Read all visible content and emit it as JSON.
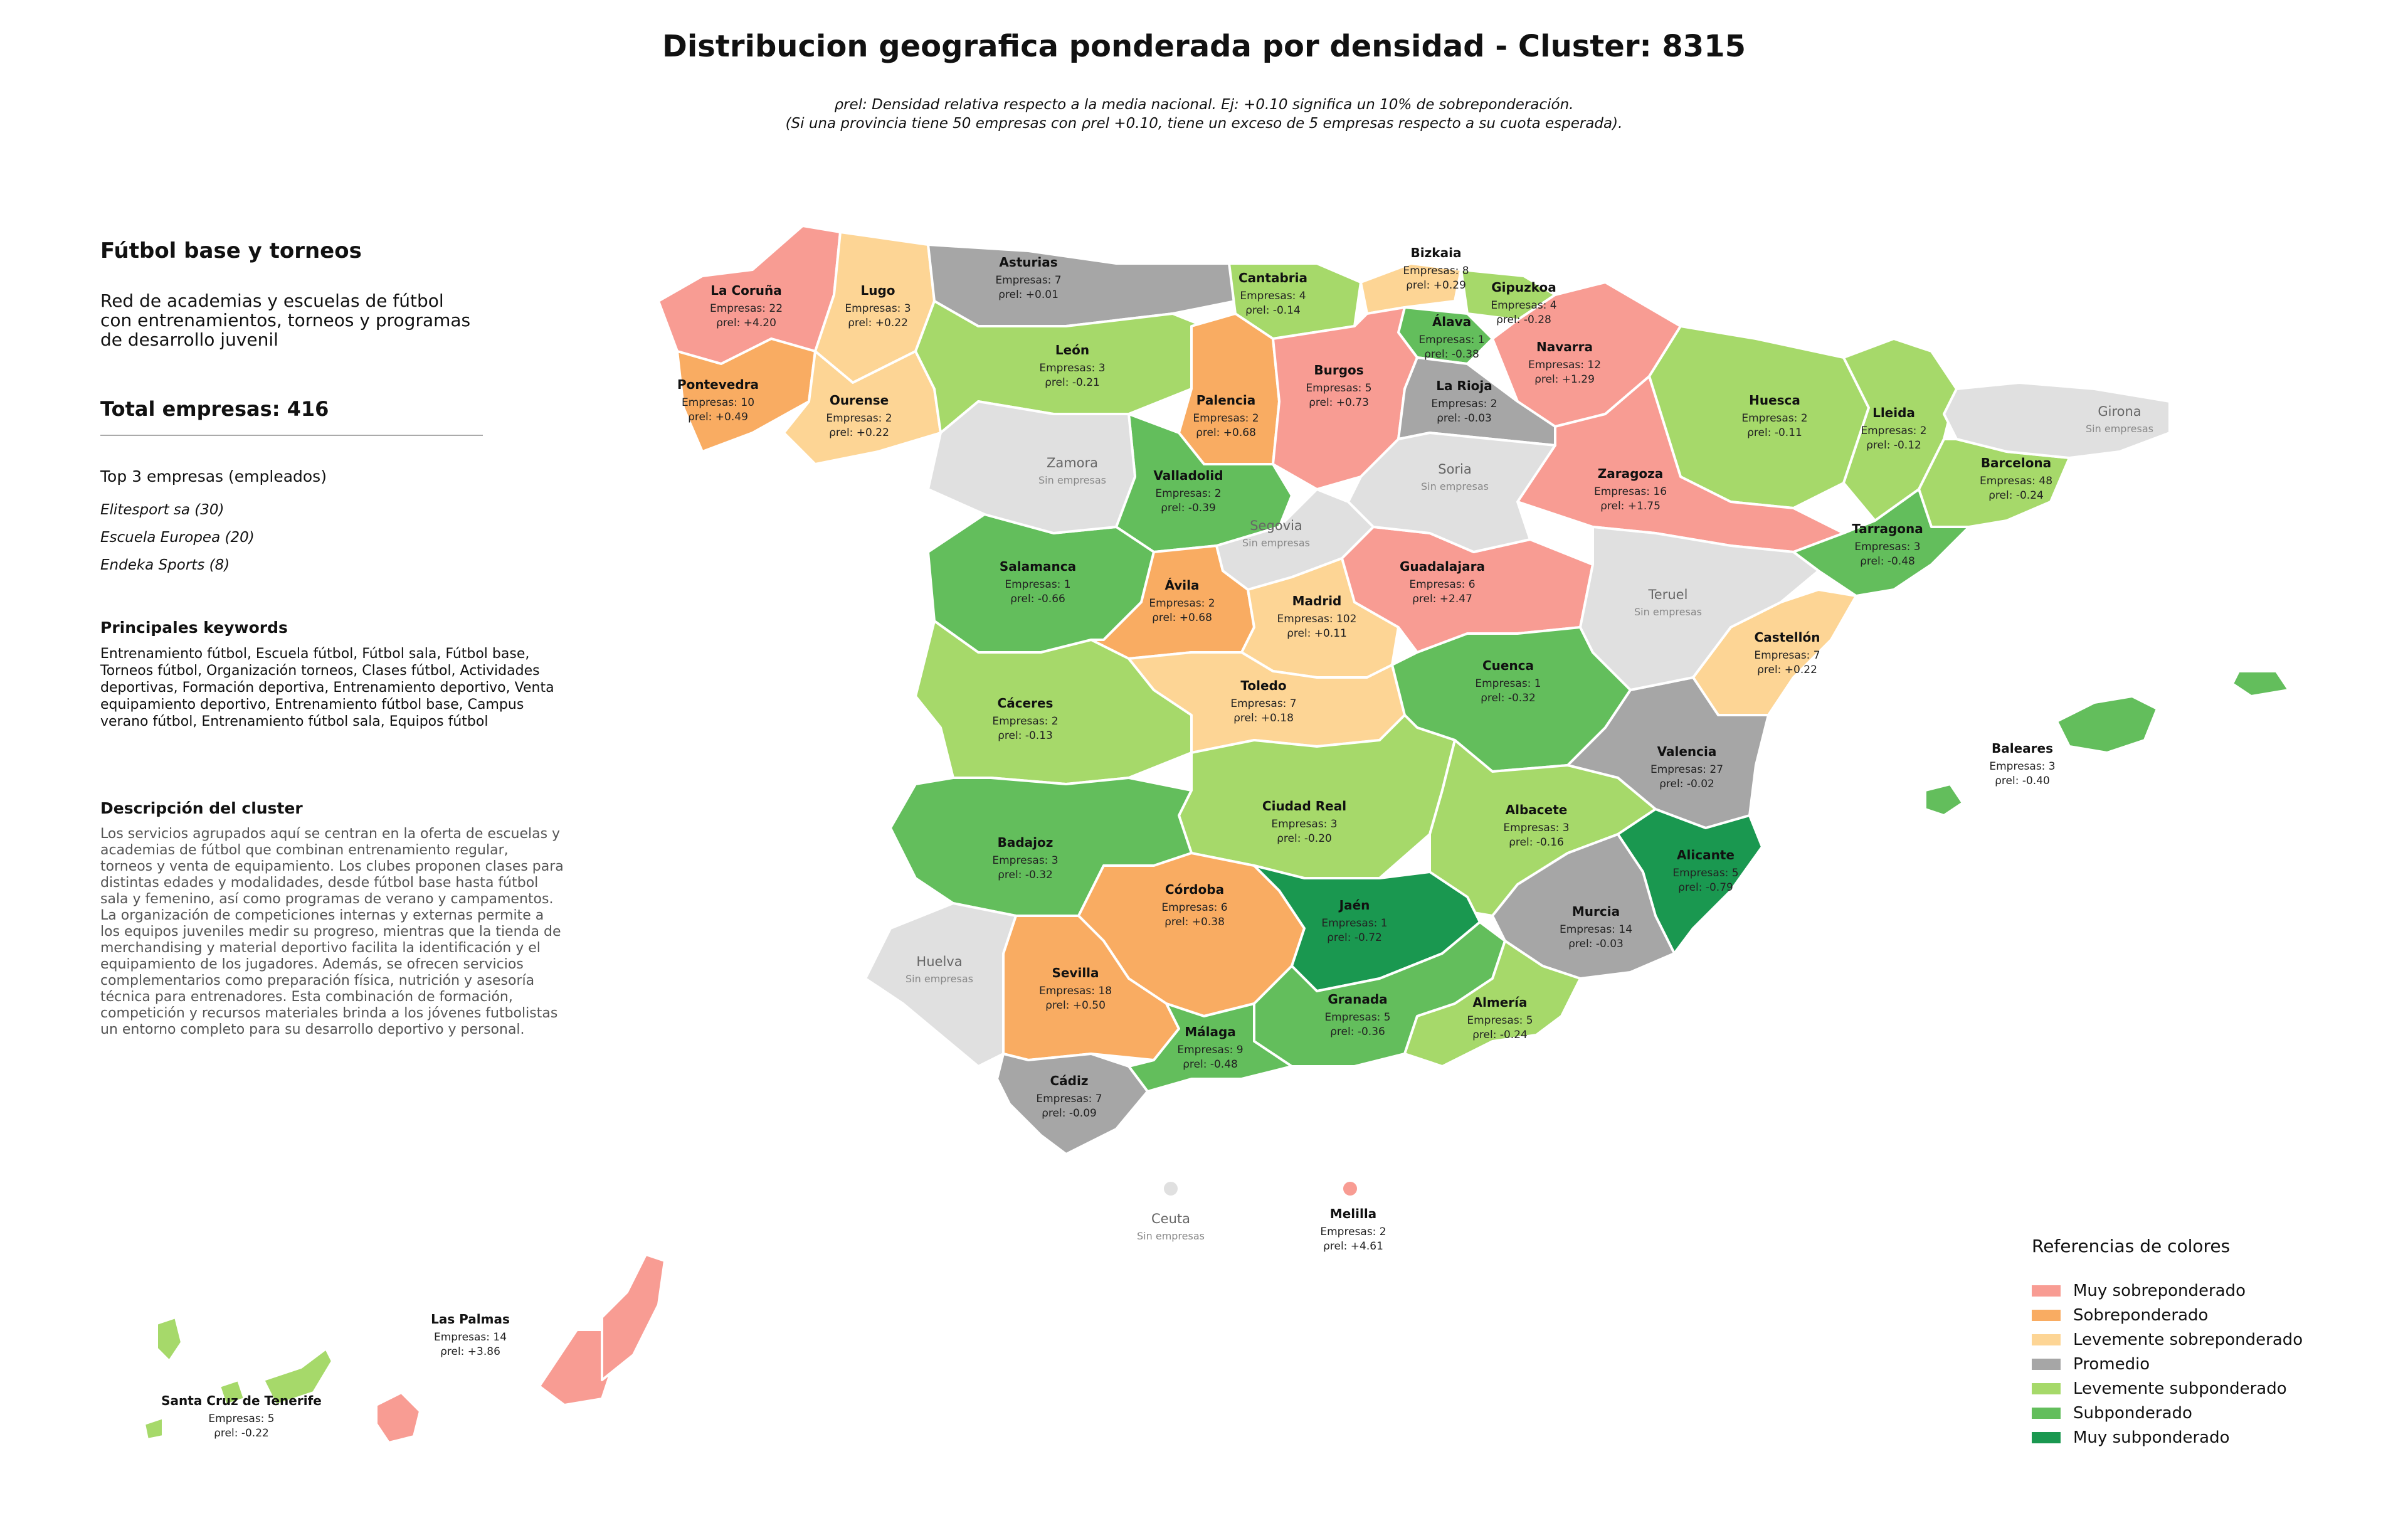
{
  "title": "Distribucion geografica ponderada por densidad - Cluster: 8315",
  "subtitle_line1": "ρrel: Densidad relativa respecto a la media nacional. Ej: +0.10 significa un 10% de sobreponderación.",
  "subtitle_line2": "(Si una provincia tiene 50 empresas con ρrel +0.10, tiene un exceso de 5 empresas respecto a su cuota esperada).",
  "panel": {
    "title": "Fútbol base y torneos",
    "description": "Red de academias y escuelas de fútbol\ncon entrenamientos, torneos y programas\nde desarrollo juvenil",
    "total": "Total empresas: 416",
    "top_heading": "Top 3 empresas (empleados)",
    "top": [
      "Elitesport sa (30)",
      "Escuela Europea (20)",
      "Endeka Sports (8)"
    ],
    "keywords_heading": "Principales keywords",
    "keywords": "Entrenamiento fútbol, Escuela fútbol, Fútbol sala, Fútbol base, Torneos fútbol, Organización torneos, Clases fútbol, Actividades deportivas, Formación deportiva, Entrenamiento deportivo, Venta equipamiento deportivo, Entrenamiento fútbol base, Campus verano fútbol, Entrenamiento fútbol sala, Equipos fútbol",
    "cluster_heading": "Descripción del cluster",
    "cluster_description": "Los servicios agrupados aquí se centran en la oferta de escuelas y academias de fútbol que combinan entrenamiento regular, torneos y venta de equipamiento. Los clubes proponen clases para distintas edades y modalidades, desde fútbol base hasta fútbol sala y femenino, así como programas de verano y campamentos. La organización de competiciones internas y externas permite a los equipos juveniles medir su progreso, mientras que la tienda de merchandising y material deportivo facilita la identificación y el equipamiento de los jugadores. Además, se ofrecen servicios complementarios como preparación física, nutrición y asesoría técnica para entrenadores. Esta combinación de formación, competición y recursos materiales brinda a los jóvenes futbolistas un entorno completo para su desarrollo deportivo y personal."
  },
  "colors": {
    "muy_sobre": "#f89c93",
    "sobre": "#f9ac62",
    "lev_sobre": "#fdd595",
    "promedio": "#a6a6a6",
    "lev_sub": "#a6d96a",
    "sub": "#63be5c",
    "muy_sub": "#1a9850",
    "sin": "#e0e0e0"
  },
  "legend": {
    "title": "Referencias de colores",
    "items": [
      {
        "label": "Muy sobreponderado",
        "color": "#f89c93"
      },
      {
        "label": "Sobreponderado",
        "color": "#f9ac62"
      },
      {
        "label": "Levemente sobreponderado",
        "color": "#fdd595"
      },
      {
        "label": "Promedio",
        "color": "#a6a6a6"
      },
      {
        "label": "Levemente subponderado",
        "color": "#a6d96a"
      },
      {
        "label": "Subponderado",
        "color": "#63be5c"
      },
      {
        "label": "Muy subponderado",
        "color": "#1a9850"
      }
    ]
  },
  "sin_empresas": "Sin empresas",
  "provinces": [
    {
      "name": "La Coruña",
      "empresas": "Empresas: 22",
      "rho": "ρrel: +4.20",
      "cat": "muy_sobre"
    },
    {
      "name": "Lugo",
      "empresas": "Empresas: 3",
      "rho": "ρrel: +0.22",
      "cat": "lev_sobre"
    },
    {
      "name": "Asturias",
      "empresas": "Empresas: 7",
      "rho": "ρrel: +0.01",
      "cat": "promedio"
    },
    {
      "name": "Cantabria",
      "empresas": "Empresas: 4",
      "rho": "ρrel: -0.14",
      "cat": "lev_sub"
    },
    {
      "name": "Bizkaia",
      "empresas": "Empresas: 8",
      "rho": "ρrel: +0.29",
      "cat": "lev_sobre"
    },
    {
      "name": "Gipuzkoa",
      "empresas": "Empresas: 4",
      "rho": "ρrel: -0.28",
      "cat": "lev_sub"
    },
    {
      "name": "Álava",
      "empresas": "Empresas: 1",
      "rho": "ρrel: -0.38",
      "cat": "sub"
    },
    {
      "name": "Navarra",
      "empresas": "Empresas: 12",
      "rho": "ρrel: +1.29",
      "cat": "muy_sobre"
    },
    {
      "name": "Pontevedra",
      "empresas": "Empresas: 10",
      "rho": "ρrel: +0.49",
      "cat": "sobre"
    },
    {
      "name": "Ourense",
      "empresas": "Empresas: 2",
      "rho": "ρrel: +0.22",
      "cat": "lev_sobre"
    },
    {
      "name": "León",
      "empresas": "Empresas: 3",
      "rho": "ρrel: -0.21",
      "cat": "lev_sub"
    },
    {
      "name": "Palencia",
      "empresas": "Empresas: 2",
      "rho": "ρrel: +0.68",
      "cat": "sobre"
    },
    {
      "name": "Burgos",
      "empresas": "Empresas: 5",
      "rho": "ρrel: +0.73",
      "cat": "muy_sobre"
    },
    {
      "name": "La Rioja",
      "empresas": "Empresas: 2",
      "rho": "ρrel: -0.03",
      "cat": "promedio"
    },
    {
      "name": "Huesca",
      "empresas": "Empresas: 2",
      "rho": "ρrel: -0.11",
      "cat": "lev_sub"
    },
    {
      "name": "Lleida",
      "empresas": "Empresas: 2",
      "rho": "ρrel: -0.12",
      "cat": "lev_sub"
    },
    {
      "name": "Barcelona",
      "empresas": "Empresas: 48",
      "rho": "ρrel: -0.24",
      "cat": "lev_sub"
    },
    {
      "name": "Zaragoza",
      "empresas": "Empresas: 16",
      "rho": "ρrel: +1.75",
      "cat": "muy_sobre"
    },
    {
      "name": "Valladolid",
      "empresas": "Empresas: 2",
      "rho": "ρrel: -0.39",
      "cat": "sub"
    },
    {
      "name": "Tarragona",
      "empresas": "Empresas: 3",
      "rho": "ρrel: -0.48",
      "cat": "sub"
    },
    {
      "name": "Salamanca",
      "empresas": "Empresas: 1",
      "rho": "ρrel: -0.66",
      "cat": "sub"
    },
    {
      "name": "Ávila",
      "empresas": "Empresas: 2",
      "rho": "ρrel: +0.68",
      "cat": "sobre"
    },
    {
      "name": "Madrid",
      "empresas": "Empresas: 102",
      "rho": "ρrel: +0.11",
      "cat": "lev_sobre"
    },
    {
      "name": "Guadalajara",
      "empresas": "Empresas: 6",
      "rho": "ρrel: +2.47",
      "cat": "muy_sobre"
    },
    {
      "name": "Castellón",
      "empresas": "Empresas: 7",
      "rho": "ρrel: +0.22",
      "cat": "lev_sobre"
    },
    {
      "name": "Cáceres",
      "empresas": "Empresas: 2",
      "rho": "ρrel: -0.13",
      "cat": "lev_sub"
    },
    {
      "name": "Toledo",
      "empresas": "Empresas: 7",
      "rho": "ρrel: +0.18",
      "cat": "lev_sobre"
    },
    {
      "name": "Cuenca",
      "empresas": "Empresas: 1",
      "rho": "ρrel: -0.32",
      "cat": "sub"
    },
    {
      "name": "Valencia",
      "empresas": "Empresas: 27",
      "rho": "ρrel: -0.02",
      "cat": "promedio"
    },
    {
      "name": "Baleares",
      "empresas": "Empresas: 3",
      "rho": "ρrel: -0.40",
      "cat": "sub"
    },
    {
      "name": "Ciudad Real",
      "empresas": "Empresas: 3",
      "rho": "ρrel: -0.20",
      "cat": "lev_sub"
    },
    {
      "name": "Albacete",
      "empresas": "Empresas: 3",
      "rho": "ρrel: -0.16",
      "cat": "lev_sub"
    },
    {
      "name": "Badajoz",
      "empresas": "Empresas: 3",
      "rho": "ρrel: -0.32",
      "cat": "sub"
    },
    {
      "name": "Alicante",
      "empresas": "Empresas: 5",
      "rho": "ρrel: -0.79",
      "cat": "muy_sub"
    },
    {
      "name": "Córdoba",
      "empresas": "Empresas: 6",
      "rho": "ρrel: +0.38",
      "cat": "sobre"
    },
    {
      "name": "Jaén",
      "empresas": "Empresas: 1",
      "rho": "ρrel: -0.72",
      "cat": "muy_sub"
    },
    {
      "name": "Murcia",
      "empresas": "Empresas: 14",
      "rho": "ρrel: -0.03",
      "cat": "promedio"
    },
    {
      "name": "Sevilla",
      "empresas": "Empresas: 18",
      "rho": "ρrel: +0.50",
      "cat": "sobre"
    },
    {
      "name": "Granada",
      "empresas": "Empresas: 5",
      "rho": "ρrel: -0.36",
      "cat": "sub"
    },
    {
      "name": "Almería",
      "empresas": "Empresas: 5",
      "rho": "ρrel: -0.24",
      "cat": "lev_sub"
    },
    {
      "name": "Málaga",
      "empresas": "Empresas: 9",
      "rho": "ρrel: -0.48",
      "cat": "sub"
    },
    {
      "name": "Cádiz",
      "empresas": "Empresas: 7",
      "rho": "ρrel: -0.09",
      "cat": "promedio"
    },
    {
      "name": "Melilla",
      "empresas": "Empresas: 2",
      "rho": "ρrel: +4.61",
      "cat": "muy_sobre"
    },
    {
      "name": "Las Palmas",
      "empresas": "Empresas: 14",
      "rho": "ρrel: +3.86",
      "cat": "muy_sobre"
    },
    {
      "name": "Santa Cruz de Tenerife",
      "empresas": "Empresas: 5",
      "rho": "ρrel: -0.22",
      "cat": "lev_sub"
    }
  ],
  "no_data": [
    "Girona",
    "Zamora",
    "Soria",
    "Segovia",
    "Teruel",
    "Huelva",
    "Ceuta"
  ]
}
